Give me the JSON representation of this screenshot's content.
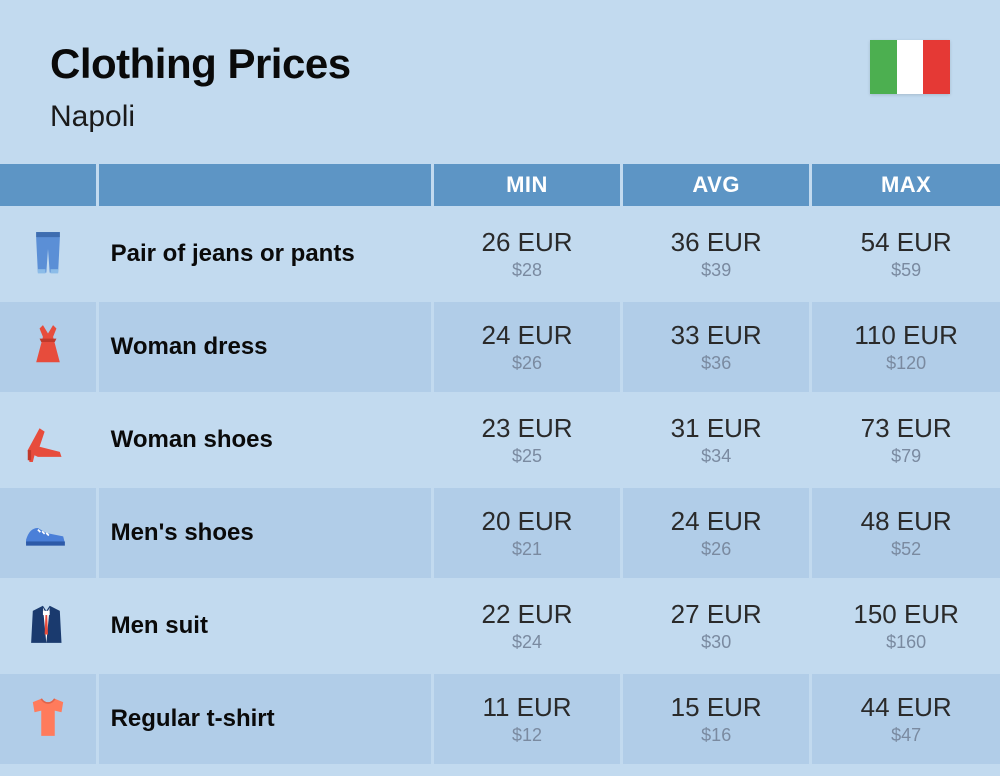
{
  "header": {
    "title": "Clothing Prices",
    "subtitle": "Napoli",
    "flag_colors": [
      "#4caf50",
      "#ffffff",
      "#e53935"
    ]
  },
  "columns": {
    "min": "MIN",
    "avg": "AVG",
    "max": "MAX"
  },
  "colors": {
    "page_bg": "#c2daef",
    "header_bg": "#5d95c5",
    "header_fg": "#ffffff",
    "row_odd_bg": "#c2daef",
    "row_even_bg": "#b1cde8",
    "price_main": "#2a2a2a",
    "price_sub": "#7a8aa0",
    "text": "#0a0a0a"
  },
  "rows": [
    {
      "icon": "jeans",
      "name": "Pair of jeans or pants",
      "min_eur": "26 EUR",
      "min_usd": "$28",
      "avg_eur": "36 EUR",
      "avg_usd": "$39",
      "max_eur": "54 EUR",
      "max_usd": "$59"
    },
    {
      "icon": "dress",
      "name": "Woman dress",
      "min_eur": "24 EUR",
      "min_usd": "$26",
      "avg_eur": "33 EUR",
      "avg_usd": "$36",
      "max_eur": "110 EUR",
      "max_usd": "$120"
    },
    {
      "icon": "heel",
      "name": "Woman shoes",
      "min_eur": "23 EUR",
      "min_usd": "$25",
      "avg_eur": "31 EUR",
      "avg_usd": "$34",
      "max_eur": "73 EUR",
      "max_usd": "$79"
    },
    {
      "icon": "sneaker",
      "name": "Men's shoes",
      "min_eur": "20 EUR",
      "min_usd": "$21",
      "avg_eur": "24 EUR",
      "avg_usd": "$26",
      "max_eur": "48 EUR",
      "max_usd": "$52"
    },
    {
      "icon": "suit",
      "name": "Men suit",
      "min_eur": "22 EUR",
      "min_usd": "$24",
      "avg_eur": "27 EUR",
      "avg_usd": "$30",
      "max_eur": "150 EUR",
      "max_usd": "$160"
    },
    {
      "icon": "tshirt",
      "name": "Regular t-shirt",
      "min_eur": "11 EUR",
      "min_usd": "$12",
      "avg_eur": "15 EUR",
      "avg_usd": "$16",
      "max_eur": "44 EUR",
      "max_usd": "$47"
    }
  ]
}
